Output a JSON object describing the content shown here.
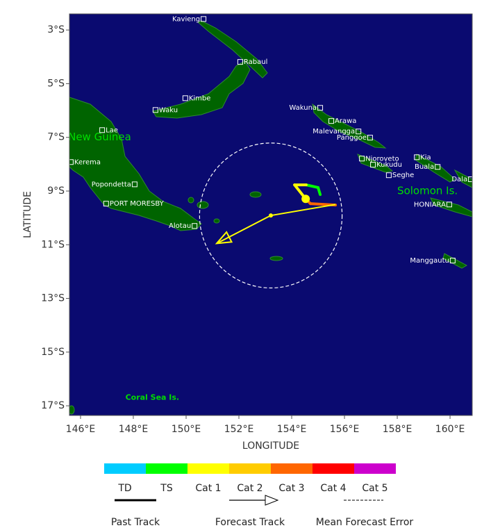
{
  "map": {
    "x_label": "LONGITUDE",
    "y_label": "LATITUDE",
    "xlim": [
      145.58,
      160.84
    ],
    "ylim": [
      -17.36,
      -2.4
    ],
    "xticks": [
      {
        "value": 146,
        "label": "146°E"
      },
      {
        "value": 148,
        "label": "148°E"
      },
      {
        "value": 150,
        "label": "150°E"
      },
      {
        "value": 152,
        "label": "152°E"
      },
      {
        "value": 154,
        "label": "154°E"
      },
      {
        "value": 156,
        "label": "156°E"
      },
      {
        "value": 158,
        "label": "158°E"
      },
      {
        "value": 160,
        "label": "160°E"
      }
    ],
    "yticks": [
      {
        "value": -3,
        "label": "3°S"
      },
      {
        "value": -5,
        "label": "5°S"
      },
      {
        "value": -7,
        "label": "7°S"
      },
      {
        "value": -9,
        "label": "9°S"
      },
      {
        "value": -11,
        "label": "11°S"
      },
      {
        "value": -13,
        "label": "13°S"
      },
      {
        "value": -15,
        "label": "15°S"
      },
      {
        "value": -17,
        "label": "17°S"
      }
    ],
    "places": [
      {
        "name": "Kavieng",
        "lon": 150.66,
        "lat": -2.59,
        "side": "left"
      },
      {
        "name": "Rabaul",
        "lon": 152.05,
        "lat": -4.19,
        "side": "right"
      },
      {
        "name": "Kimbe",
        "lon": 149.97,
        "lat": -5.54,
        "side": "right"
      },
      {
        "name": "Waku",
        "lon": 148.84,
        "lat": -5.98,
        "side": "right"
      },
      {
        "name": "Lae",
        "lon": 146.82,
        "lat": -6.73,
        "side": "right"
      },
      {
        "name": "Kerema",
        "lon": 145.63,
        "lat": -7.92,
        "side": "right"
      },
      {
        "name": "Popondetta",
        "lon": 148.05,
        "lat": -8.75,
        "side": "left"
      },
      {
        "name": "PORT MORESBY",
        "lon": 146.97,
        "lat": -9.47,
        "side": "right"
      },
      {
        "name": "Alotau",
        "lon": 150.32,
        "lat": -10.3,
        "side": "left"
      },
      {
        "name": "Wakuna",
        "lon": 155.08,
        "lat": -5.9,
        "side": "left"
      },
      {
        "name": "Arawa",
        "lon": 155.5,
        "lat": -6.39,
        "side": "right"
      },
      {
        "name": "Malevangga",
        "lon": 156.53,
        "lat": -6.78,
        "side": "left"
      },
      {
        "name": "Panggoe",
        "lon": 156.97,
        "lat": -7.01,
        "side": "left"
      },
      {
        "name": "Njoroveto",
        "lon": 156.66,
        "lat": -7.79,
        "side": "right"
      },
      {
        "name": "Kia",
        "lon": 158.74,
        "lat": -7.74,
        "side": "right"
      },
      {
        "name": "Kukudu",
        "lon": 157.08,
        "lat": -8.02,
        "side": "right"
      },
      {
        "name": "Buala",
        "lon": 159.53,
        "lat": -8.1,
        "side": "left"
      },
      {
        "name": "Seghe",
        "lon": 157.68,
        "lat": -8.41,
        "side": "right"
      },
      {
        "name": "Dala",
        "lon": 160.79,
        "lat": -8.56,
        "side": "left"
      },
      {
        "name": "HONIARA",
        "lon": 159.97,
        "lat": -9.5,
        "side": "left"
      },
      {
        "name": "Manggautu",
        "lon": 160.1,
        "lat": -11.59,
        "side": "left"
      }
    ],
    "regions": [
      {
        "name": "Papua New Guinea",
        "lon": 144.2,
        "lat": -7.0,
        "size": 15
      },
      {
        "name": "Solomon Is.",
        "lon": 158.0,
        "lat": -9.0,
        "size": 15
      },
      {
        "name": "Coral Sea Is.",
        "lon": 147.7,
        "lat": -16.7,
        "size": 11
      }
    ],
    "past_track": {
      "lon": [
        155.08,
        155.0,
        154.55,
        154.11,
        154.53,
        154.71,
        155.66
      ],
      "lat": [
        -9.13,
        -8.87,
        -8.77,
        -8.77,
        -9.29,
        -9.47,
        -9.52
      ],
      "segment_colors": [
        "#00ff00",
        "#00ff00",
        "#ffff00",
        "#ffff00",
        "#ff6600",
        "#ff6600"
      ]
    },
    "forecast_track": {
      "lon": [
        155.66,
        153.21,
        151.16
      ],
      "lat": [
        -9.5,
        -9.91,
        -10.95
      ],
      "color": "#ffff00"
    },
    "current_position": {
      "lon": 154.53,
      "lat": -9.29,
      "color": "#ffff00"
    },
    "error_circle": {
      "lon": 153.21,
      "lat": -9.91,
      "radius_deg": 2.7
    },
    "legend": {
      "categories": [
        {
          "name": "TD",
          "color": "#00ccff"
        },
        {
          "name": "TS",
          "color": "#00ff00"
        },
        {
          "name": "Cat 1",
          "color": "#ffff00"
        },
        {
          "name": "Cat 2",
          "color": "#ffcc00"
        },
        {
          "name": "Cat 3",
          "color": "#ff6600"
        },
        {
          "name": "Cat 4",
          "color": "#ff0000"
        },
        {
          "name": "Cat 5",
          "color": "#cc00cc"
        }
      ],
      "items": [
        "Past Track",
        "Forecast Track",
        "Mean Forecast Error"
      ]
    }
  }
}
